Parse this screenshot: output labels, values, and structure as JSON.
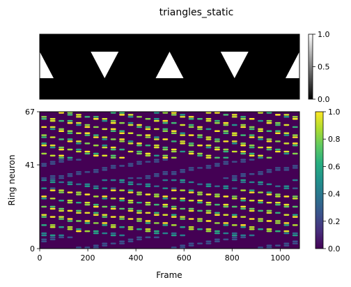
{
  "figure": {
    "title": "triangles_static"
  },
  "chart_data": [
    {
      "type": "image",
      "panel": "stimulus",
      "description_of_content": "black field with white triangles",
      "triangles": [
        {
          "orientation": "up",
          "center_x_frac": 0.0,
          "clipped": true
        },
        {
          "orientation": "down",
          "center_x_frac": 0.25
        },
        {
          "orientation": "up",
          "center_x_frac": 0.5
        },
        {
          "orientation": "down",
          "center_x_frac": 0.75
        },
        {
          "orientation": "up",
          "center_x_frac": 1.0,
          "clipped": true
        }
      ],
      "colorbar": {
        "colormap": "gray",
        "range": [
          0.0,
          1.0
        ],
        "ticks": [
          "0.0",
          "0.5",
          "1.0"
        ]
      },
      "axes_visible": false
    },
    {
      "type": "heatmap",
      "panel": "ring-neuron-activity",
      "xlabel": "Frame",
      "ylabel": "Ring neuron",
      "xlim": [
        0,
        1080
      ],
      "ylim": [
        0,
        67
      ],
      "x_ticks": [
        "0",
        "200",
        "400",
        "600",
        "800",
        "1000"
      ],
      "y_ticks": [
        "0",
        "41",
        "67"
      ],
      "colormap": "viridis",
      "colorbar": {
        "range": [
          0.0,
          1.0
        ],
        "ticks": [
          "0.0",
          "0.2",
          "0.4",
          "0.6",
          "0.8",
          "1.0"
        ]
      },
      "activity_bands": [
        {
          "neuron_range": [
            42,
            67
          ],
          "pattern": "diagonal bands of short bright pulses"
        },
        {
          "neuron_range": [
            0,
            41
          ],
          "pattern": "diagonal bands of short bright pulses, brightest between neurons 8 and 25"
        }
      ],
      "background_value": 0.0,
      "peak_value": 1.0
    }
  ],
  "colors": {
    "stimulus_background": "#000000",
    "stimulus_triangle": "#ffffff",
    "heatmap_background": "#440154",
    "viridis_low": "#440154",
    "viridis_high": "#fde725"
  }
}
